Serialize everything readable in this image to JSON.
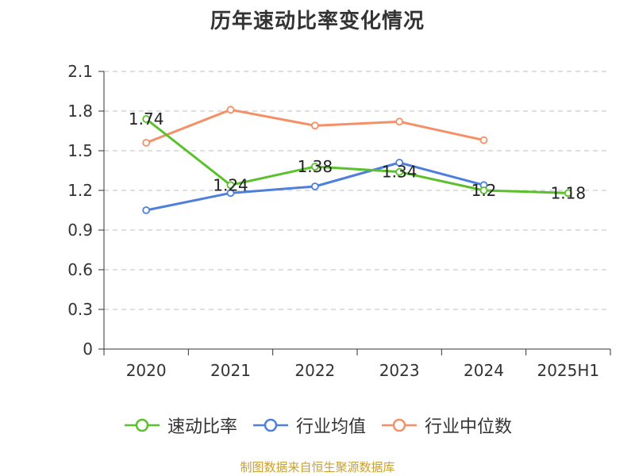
{
  "title": "历年速动比率变化情况",
  "source_note": "制图数据来自恒生聚源数据库",
  "colors": {
    "speed_ratio": "#5ac02c",
    "industry_avg": "#4f7fdc",
    "industry_median": "#f59066",
    "grid": "#cccccc",
    "axis": "#333333"
  },
  "chart_data": {
    "type": "line",
    "title": "历年速动比率变化情况",
    "categories": [
      "2020",
      "2021",
      "2022",
      "2023",
      "2024",
      "2025H1"
    ],
    "ylim": [
      0,
      2.1
    ],
    "yticks": [
      "0",
      "0.3",
      "0.6",
      "0.9",
      "1.2",
      "1.5",
      "1.8",
      "2.1"
    ],
    "grid": true,
    "legend_position": "bottom",
    "series": [
      {
        "name": "速动比率",
        "color": "#5ac02c",
        "values": [
          1.74,
          1.24,
          1.38,
          1.34,
          1.2,
          1.18
        ],
        "labels": [
          "1.74",
          "1.24",
          "1.38",
          "1.34",
          "1.2",
          "1.18"
        ]
      },
      {
        "name": "行业均值",
        "color": "#4f7fdc",
        "values": [
          1.05,
          1.18,
          1.23,
          1.41,
          1.24,
          null
        ]
      },
      {
        "name": "行业中位数",
        "color": "#f59066",
        "values": [
          1.56,
          1.81,
          1.69,
          1.72,
          1.58,
          null
        ]
      }
    ]
  }
}
